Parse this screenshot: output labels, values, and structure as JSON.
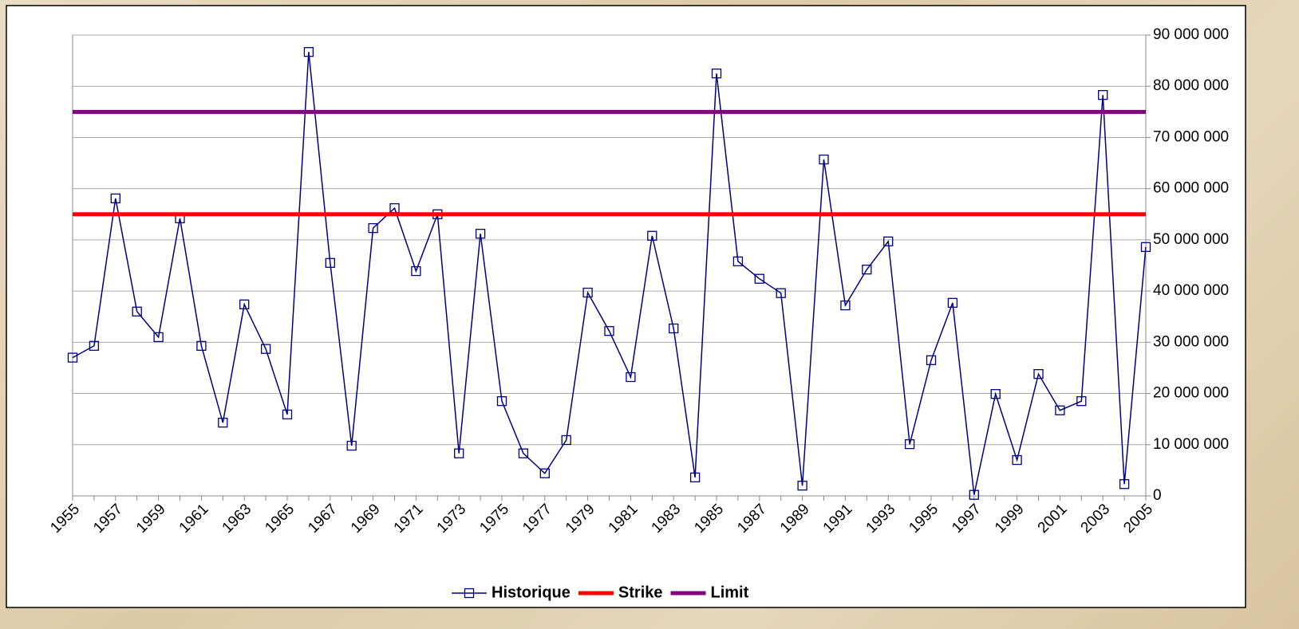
{
  "chart_data": {
    "type": "line",
    "categories": [
      "1955",
      null,
      "1957",
      null,
      "1959",
      null,
      "1961",
      null,
      "1963",
      null,
      "1965",
      null,
      "1967",
      null,
      "1969",
      null,
      "1971",
      null,
      "1973",
      null,
      "1975",
      null,
      "1977",
      null,
      "1979",
      null,
      "1981",
      null,
      "1983",
      null,
      "1985",
      null,
      "1987",
      null,
      "1989",
      null,
      "1991",
      null,
      "1993",
      null,
      "1995",
      null,
      "1997",
      null,
      "1999",
      null,
      "2001",
      null,
      "2003",
      null,
      "2005"
    ],
    "series": [
      {
        "name": "Historique",
        "color": "#000080",
        "marker": "square",
        "values": [
          27000000,
          29300000,
          58100000,
          36000000,
          31000000,
          54200000,
          29300000,
          14300000,
          37400000,
          28700000,
          15900000,
          86700000,
          45500000,
          9800000,
          52300000,
          56200000,
          43900000,
          55000000,
          8300000,
          51200000,
          18500000,
          8300000,
          4400000,
          10900000,
          39700000,
          32200000,
          23200000,
          50800000,
          32700000,
          3600000,
          82500000,
          45800000,
          42400000,
          39600000,
          2000000,
          65700000,
          37200000,
          44200000,
          49700000,
          10100000,
          26500000,
          37700000,
          200000,
          19900000,
          7000000,
          23800000,
          16700000,
          18500000,
          78300000,
          2300000,
          48600000
        ]
      },
      {
        "name": "Strike",
        "color": "#ff0000",
        "values": [
          55000000,
          55000000,
          55000000,
          55000000,
          55000000,
          55000000,
          55000000,
          55000000,
          55000000,
          55000000,
          55000000,
          55000000,
          55000000,
          55000000,
          55000000,
          55000000,
          55000000,
          55000000,
          55000000,
          55000000,
          55000000,
          55000000,
          55000000,
          55000000,
          55000000,
          55000000,
          55000000,
          55000000,
          55000000,
          55000000,
          55000000,
          55000000,
          55000000,
          55000000,
          55000000,
          55000000,
          55000000,
          55000000,
          55000000,
          55000000,
          55000000,
          55000000,
          55000000,
          55000000,
          55000000,
          55000000,
          55000000,
          55000000,
          55000000,
          55000000,
          55000000
        ]
      },
      {
        "name": "Limit",
        "color": "#800080",
        "values": [
          75000000,
          75000000,
          75000000,
          75000000,
          75000000,
          75000000,
          75000000,
          75000000,
          75000000,
          75000000,
          75000000,
          75000000,
          75000000,
          75000000,
          75000000,
          75000000,
          75000000,
          75000000,
          75000000,
          75000000,
          75000000,
          75000000,
          75000000,
          75000000,
          75000000,
          75000000,
          75000000,
          75000000,
          75000000,
          75000000,
          75000000,
          75000000,
          75000000,
          75000000,
          75000000,
          75000000,
          75000000,
          75000000,
          75000000,
          75000000,
          75000000,
          75000000,
          75000000,
          75000000,
          75000000,
          75000000,
          75000000,
          75000000,
          75000000,
          75000000,
          75000000
        ]
      }
    ],
    "ylim": [
      0,
      90000000
    ],
    "yticks": [
      0,
      {
        "value": 10000000,
        "label": "10 000 000"
      },
      {
        "value": 20000000,
        "label": "20 000 000"
      },
      {
        "value": 30000000,
        "label": "30 000 000"
      },
      {
        "value": 40000000,
        "label": "40 000 000"
      },
      {
        "value": 50000000,
        "label": "50 000 000"
      },
      {
        "value": 60000000,
        "label": "60 000 000"
      },
      {
        "value": 70000000,
        "label": "70 000 000"
      },
      {
        "value": 80000000,
        "label": "80 000 000"
      },
      {
        "value": 90000000,
        "label": "90 000 000"
      }
    ],
    "y_axis_side": "right",
    "grid": true,
    "legend": "bottom"
  }
}
